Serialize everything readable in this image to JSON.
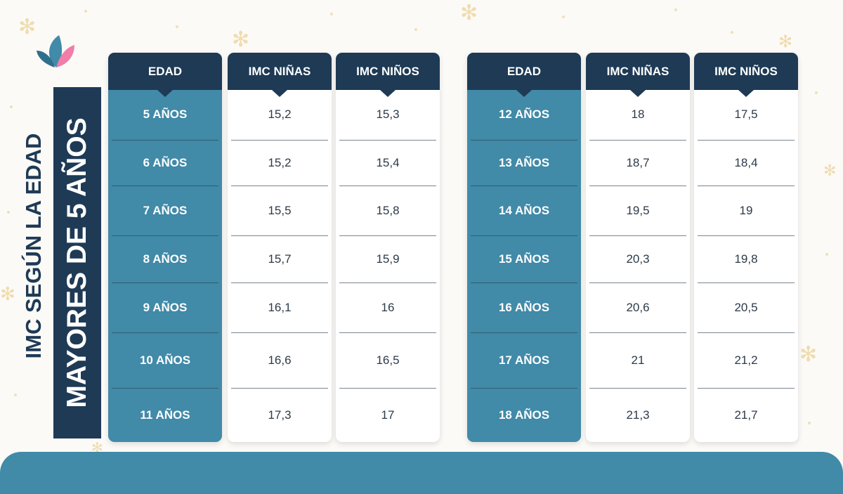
{
  "title_line1": "IMC SEGÚN LA EDAD",
  "title_line2": "MAYORES DE 5 AÑOS",
  "tables": [
    {
      "headers": [
        "EDAD",
        "IMC NIÑAS",
        "IMC NIÑOS"
      ],
      "rows": [
        [
          "5 AÑOS",
          "15,2",
          "15,3"
        ],
        [
          "6 AÑOS",
          "15,2",
          "15,4"
        ],
        [
          "7 AÑOS",
          "15,5",
          "15,8"
        ],
        [
          "8 AÑOS",
          "15,7",
          "15,9"
        ],
        [
          "9 AÑOS",
          "16,1",
          "16"
        ],
        [
          "10 AÑOS",
          "16,6",
          "16,5"
        ],
        [
          "11 AÑOS",
          "17,3",
          "17"
        ]
      ]
    },
    {
      "headers": [
        "EDAD",
        "IMC NIÑAS",
        "IMC NIÑOS"
      ],
      "rows": [
        [
          "12 AÑOS",
          "18",
          "17,5"
        ],
        [
          "13 AÑOS",
          "18,7",
          "18,4"
        ],
        [
          "14 AÑOS",
          "19,5",
          "19"
        ],
        [
          "15 AÑOS",
          "20,3",
          "19,8"
        ],
        [
          "16 AÑOS",
          "20,6",
          "20,5"
        ],
        [
          "17 AÑOS",
          "21",
          "21,2"
        ],
        [
          "18 AÑOS",
          "21,3",
          "21,7"
        ]
      ]
    }
  ],
  "colors": {
    "navy": "#1e3a55",
    "teal": "#418aa8",
    "logo_pink": "#f07ea8",
    "background": "#fbfaf7"
  },
  "icons": {
    "logo": "flower-petals-logo",
    "decor": "sparkle-icon"
  }
}
